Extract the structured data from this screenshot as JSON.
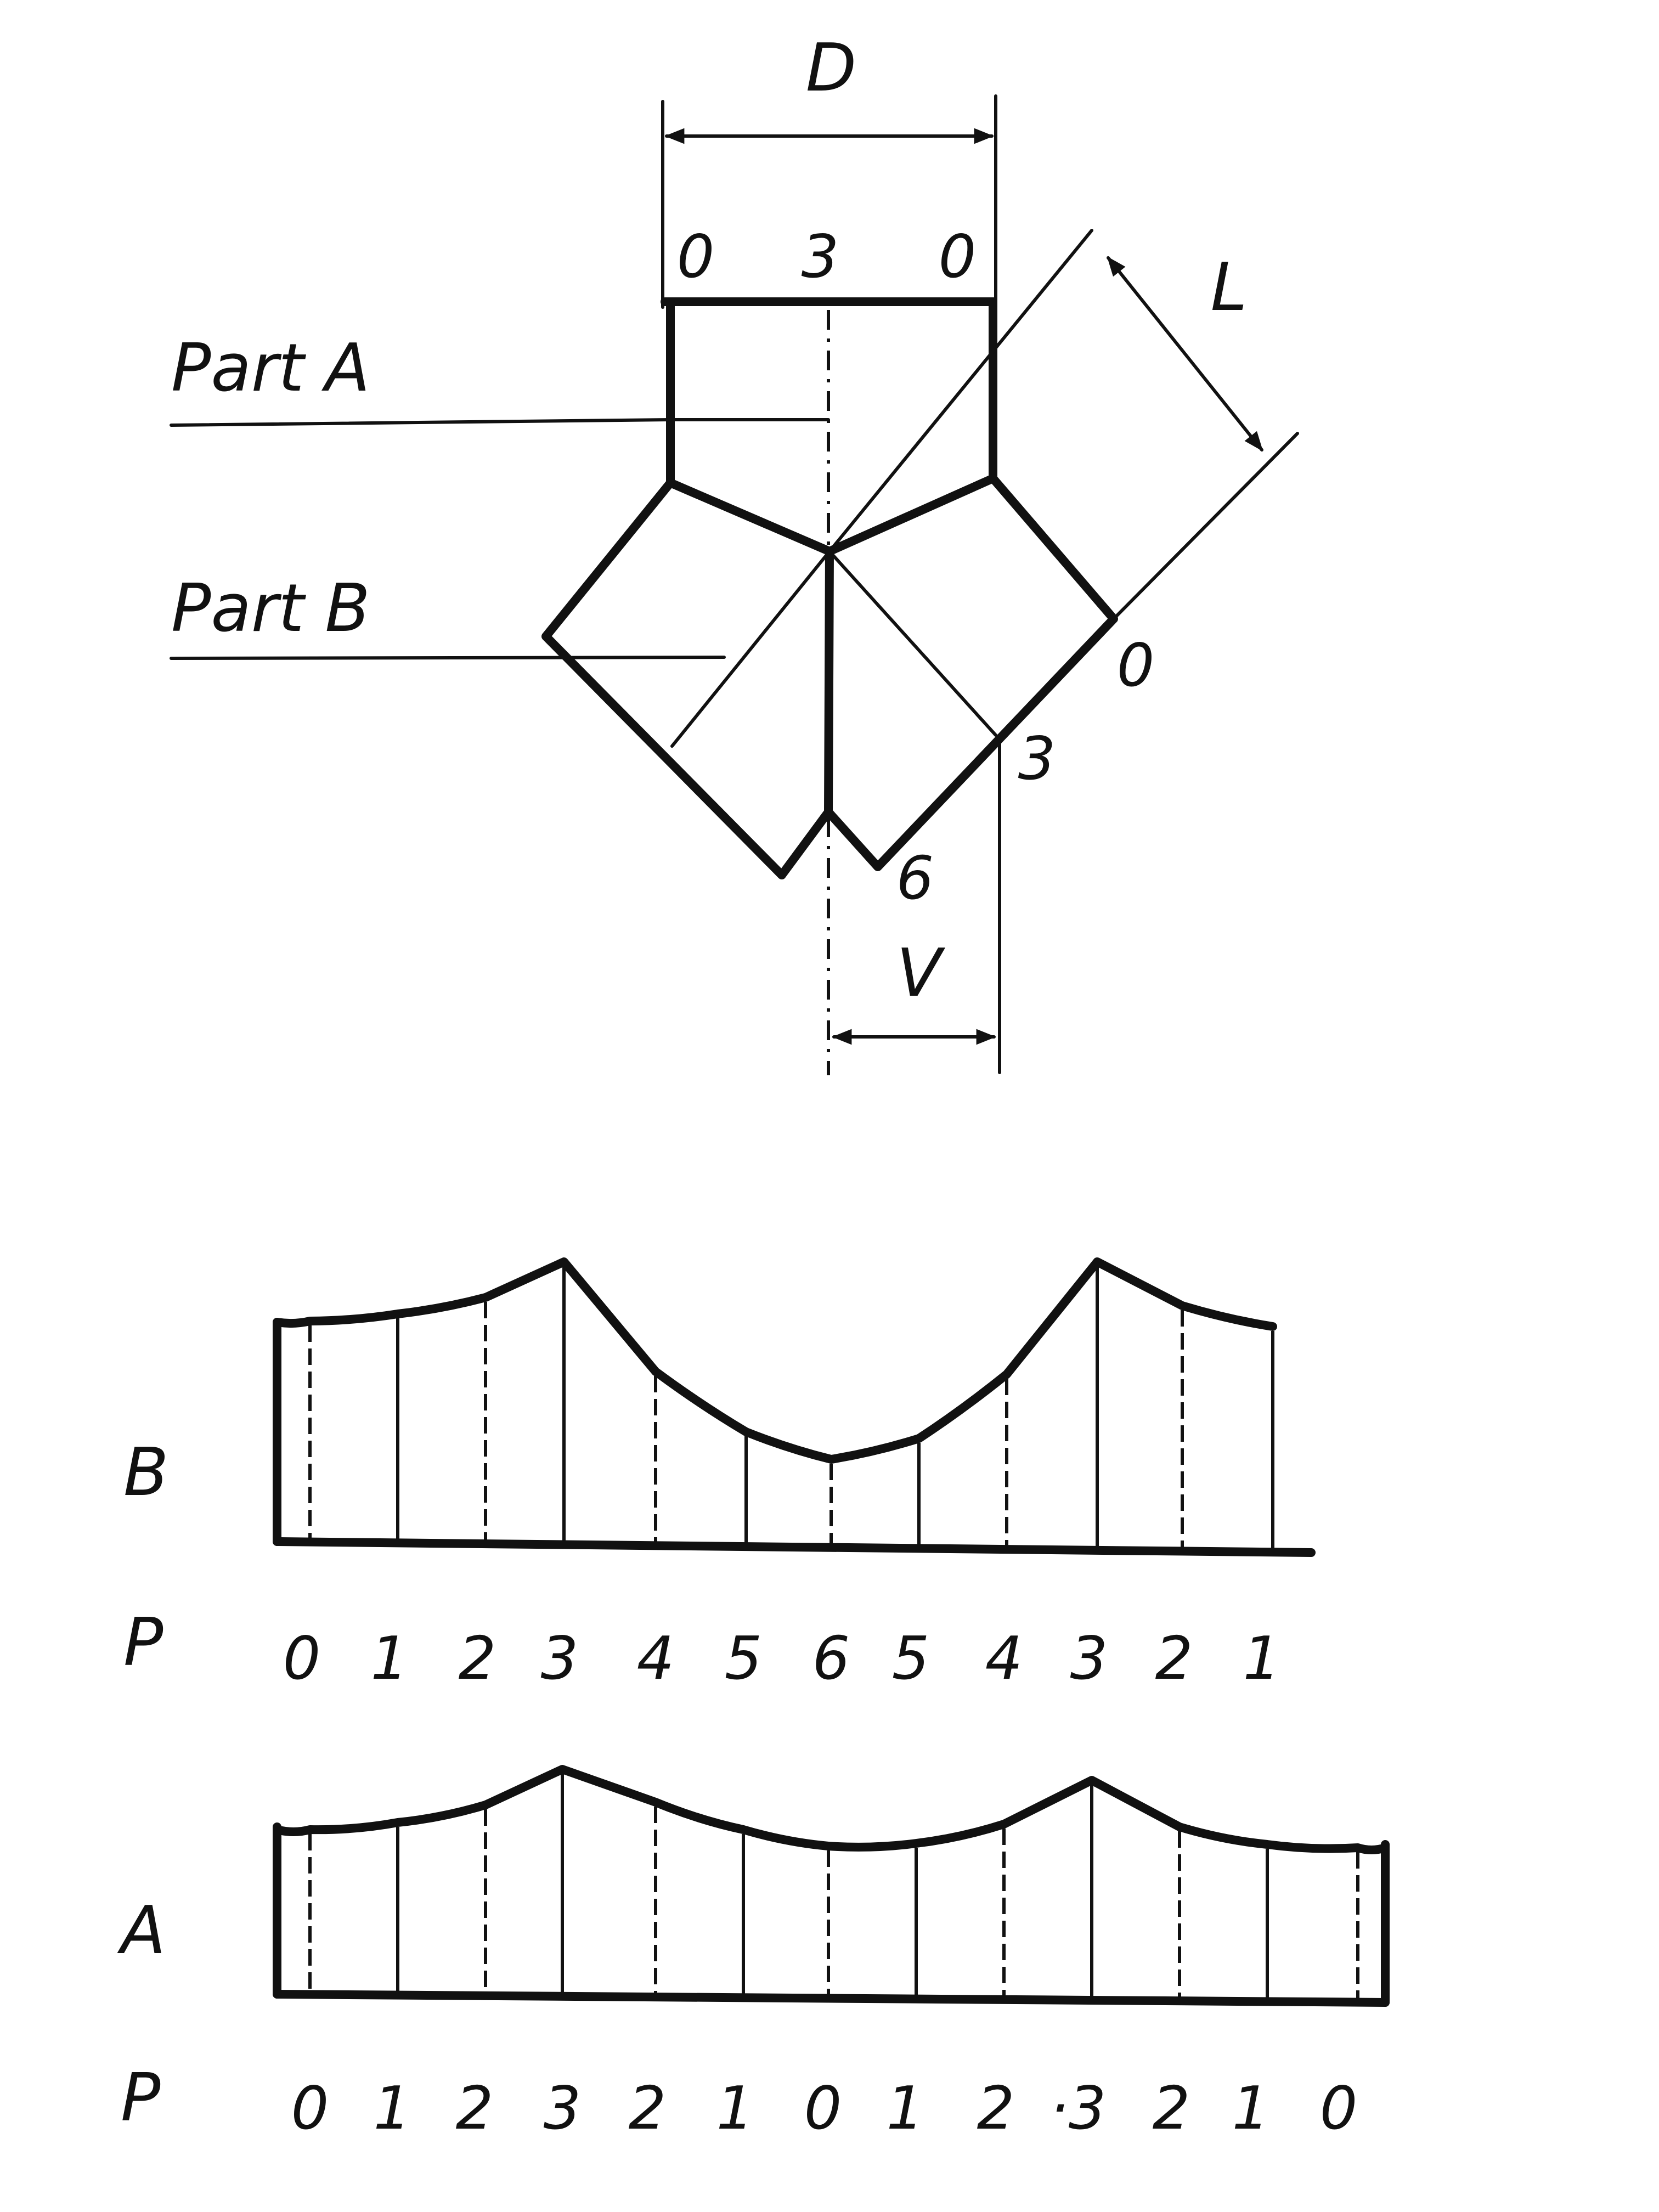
{
  "elevation": {
    "dimension_D": "D",
    "dimension_L": "L",
    "dimension_V": "V",
    "top_points": [
      "0",
      "3",
      "0"
    ],
    "part_a_label": "Part A",
    "part_b_label": "Part B",
    "branch_points": [
      "0",
      "3",
      "6"
    ]
  },
  "pattern_b": {
    "row_label": "B",
    "p_label": "P",
    "points": [
      "0",
      "1",
      "2",
      "3",
      "4",
      "5",
      "6",
      "5",
      "4",
      "3",
      "2",
      "1"
    ]
  },
  "pattern_a": {
    "row_label": "A",
    "p_label": "P",
    "points": [
      "0",
      "1",
      "2",
      "3",
      "2",
      "1",
      "0",
      "1",
      "2",
      "·3",
      "2",
      "1",
      "0"
    ]
  }
}
